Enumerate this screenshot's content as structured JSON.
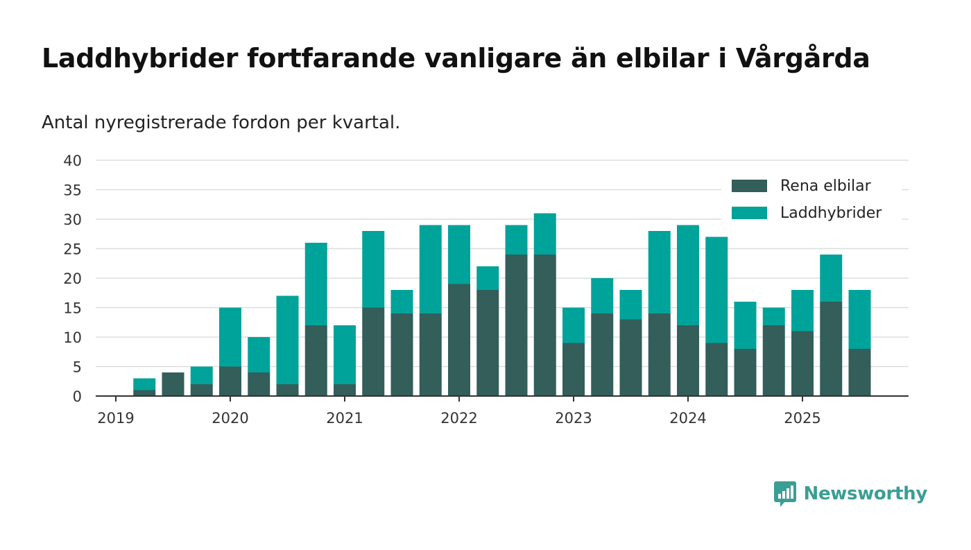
{
  "title": "Laddhybrider fortfarande vanligare än elbilar i Vårgårda",
  "subtitle": "Antal nyregistrerade fordon per kvartal.",
  "brand": {
    "name": "Newsworthy"
  },
  "colors": {
    "elbilar": "#335e5a",
    "laddhybrider": "#00a39a",
    "grid": "#dddddd",
    "axis": "#333333"
  },
  "chart_data": {
    "type": "bar",
    "stacked": true,
    "title": "Laddhybrider fortfarande vanligare än elbilar i Vårgårda",
    "subtitle": "Antal nyregistrerade fordon per kvartal.",
    "xlabel": "",
    "ylabel": "",
    "ylim": [
      0,
      40
    ],
    "yticks": [
      0,
      5,
      10,
      15,
      20,
      25,
      30,
      35,
      40
    ],
    "xticks": [
      "2019",
      "2020",
      "2021",
      "2022",
      "2023",
      "2024",
      "2025"
    ],
    "grid": true,
    "legend_position": "top-right",
    "categories": [
      "2019 Q1",
      "2019 Q2",
      "2019 Q3",
      "2019 Q4",
      "2020 Q1",
      "2020 Q2",
      "2020 Q3",
      "2020 Q4",
      "2021 Q1",
      "2021 Q2",
      "2021 Q3",
      "2021 Q4",
      "2022 Q1",
      "2022 Q2",
      "2022 Q3",
      "2022 Q4",
      "2023 Q1",
      "2023 Q2",
      "2023 Q3",
      "2023 Q4",
      "2024 Q1",
      "2024 Q2",
      "2024 Q3",
      "2024 Q4",
      "2025 Q1",
      "2025 Q2",
      "2025 Q3"
    ],
    "series": [
      {
        "name": "Rena elbilar",
        "color": "#335e5a",
        "values": [
          0,
          1,
          4,
          2,
          5,
          4,
          2,
          12,
          2,
          15,
          14,
          14,
          19,
          18,
          24,
          24,
          9,
          14,
          13,
          14,
          12,
          9,
          8,
          12,
          11,
          16,
          8
        ]
      },
      {
        "name": "Laddhybrider",
        "color": "#00a39a",
        "values": [
          0,
          2,
          0,
          3,
          10,
          6,
          15,
          14,
          10,
          13,
          4,
          15,
          10,
          4,
          5,
          7,
          6,
          6,
          5,
          14,
          17,
          18,
          8,
          3,
          7,
          8,
          10
        ]
      }
    ]
  }
}
